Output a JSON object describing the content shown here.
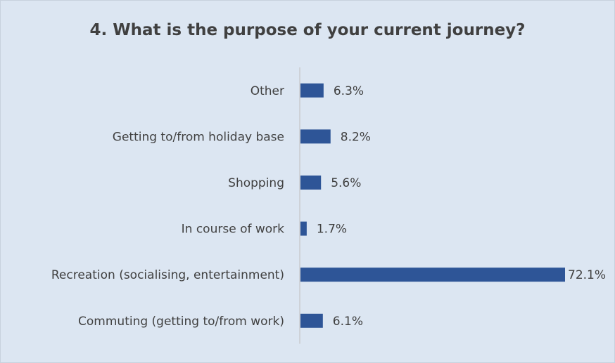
{
  "chart_data": {
    "type": "bar",
    "orientation": "horizontal",
    "title": "4. What is the purpose of your current journey?",
    "categories": [
      "Other",
      "Getting to/from holiday base",
      "Shopping",
      "In course of work",
      "Recreation (socialising, entertainment)",
      "Commuting (getting to/from work)"
    ],
    "values": [
      6.3,
      8.2,
      5.6,
      1.7,
      72.1,
      6.1
    ],
    "value_labels": [
      "6.3%",
      "8.2%",
      "5.6%",
      "1.7%",
      "72.1%",
      "6.1%"
    ],
    "unit": "%",
    "xlim": [
      0,
      72.1
    ],
    "grid": false,
    "legend": "none",
    "colors": {
      "bar": "#2e5597",
      "background": "#dce6f2",
      "axis": "#bfbfbf",
      "text": "#404040"
    }
  }
}
